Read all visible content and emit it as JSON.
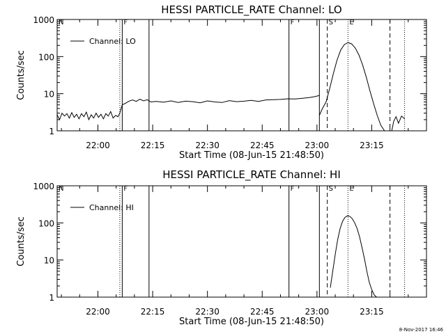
{
  "footer": {
    "timestamp": "8-Nov-2017 16:46"
  },
  "chart_data": [
    {
      "type": "line",
      "title": "HESSI PARTICLE_RATE Channel: LO",
      "xlabel": "Start Time (08-Jun-15 21:48:50)",
      "ylabel": "Counts/sec",
      "yscale": "log",
      "ylim": [
        1,
        1000
      ],
      "xlim": [
        "21:48:50",
        "23:30:00"
      ],
      "x_ticks": [
        "22:00",
        "22:15",
        "22:30",
        "22:45",
        "23:00",
        "23:15"
      ],
      "y_ticks": [
        "1",
        "10",
        "100",
        "1000"
      ],
      "legend": {
        "label": "Channel: LO",
        "placement": "top-left"
      },
      "markers": [
        {
          "time": "21:48:50",
          "label": "N",
          "style": "solid"
        },
        {
          "time": "22:06:00",
          "label": "",
          "style": "dotted"
        },
        {
          "time": "22:06:40",
          "label": "F",
          "style": "solid"
        },
        {
          "time": "22:14:00",
          "label": "",
          "style": "solid"
        },
        {
          "time": "22:52:20",
          "label": "F",
          "style": "solid"
        },
        {
          "time": "23:00:40",
          "label": "",
          "style": "solid"
        },
        {
          "time": "23:02:50",
          "label": "S",
          "style": "dashed"
        },
        {
          "time": "23:08:30",
          "label": "E",
          "style": "dotted"
        },
        {
          "time": "23:20:00",
          "label": "",
          "style": "dashed"
        },
        {
          "time": "23:24:00",
          "label": "",
          "style": "dotted"
        }
      ],
      "series": [
        {
          "name": "Channel: LO",
          "segments": [
            {
              "x": [
                "21:48:50",
                "21:49:30",
                "21:50:10",
                "21:50:50",
                "21:51:30",
                "21:52:10",
                "21:52:50",
                "21:53:30",
                "21:54:10",
                "21:54:50",
                "21:55:30",
                "21:56:10",
                "21:56:50",
                "21:57:30",
                "21:58:10",
                "21:58:50",
                "21:59:30",
                "22:00:10",
                "22:00:50",
                "22:01:30",
                "22:02:10",
                "22:02:50",
                "22:03:30",
                "22:04:10",
                "22:04:50",
                "22:05:30",
                "22:06:00"
              ],
              "y": [
                2.7,
                2.0,
                3.0,
                2.5,
                2.9,
                2.2,
                3.1,
                2.3,
                2.8,
                2.1,
                2.9,
                2.4,
                3.2,
                2.0,
                2.7,
                2.2,
                3.0,
                2.3,
                2.8,
                2.1,
                2.9,
                2.5,
                3.3,
                2.2,
                2.6,
                2.4,
                3.0
              ]
            },
            {
              "x": [
                "22:06:00",
                "22:06:40",
                "22:07:30",
                "22:08:30",
                "22:09:30",
                "22:10:30",
                "22:11:30",
                "22:12:30",
                "22:13:30",
                "22:14:30",
                "22:16:00",
                "22:18:00",
                "22:20:00",
                "22:22:00",
                "22:24:00",
                "22:26:00",
                "22:28:00",
                "22:30:00",
                "22:32:00",
                "22:34:00",
                "22:36:00",
                "22:38:00",
                "22:40:00",
                "22:42:00",
                "22:44:00",
                "22:46:00",
                "22:48:00",
                "22:50:00",
                "22:52:00",
                "22:54:00",
                "22:56:00",
                "22:58:00",
                "22:59:30",
                "23:00:20",
                "23:00:40"
              ],
              "y": [
                3.0,
                5.0,
                5.5,
                6.3,
                6.8,
                6.2,
                7.1,
                6.4,
                6.9,
                6.0,
                6.2,
                5.9,
                6.4,
                5.8,
                6.3,
                6.1,
                5.7,
                6.4,
                6.0,
                5.8,
                6.5,
                6.1,
                6.3,
                6.6,
                6.2,
                6.8,
                6.9,
                7.0,
                7.3,
                7.2,
                7.5,
                7.9,
                8.4,
                8.8,
                9.0
              ]
            },
            {
              "x": [
                "23:00:40",
                "23:01:30",
                "23:02:30",
                "23:03:30",
                "23:04:30",
                "23:05:30",
                "23:06:30",
                "23:07:30",
                "23:08:30",
                "23:09:30",
                "23:10:30",
                "23:11:30",
                "23:12:30",
                "23:13:30",
                "23:14:30",
                "23:15:30",
                "23:16:30",
                "23:17:30",
                "23:18:30"
              ],
              "y": [
                2.6,
                4.0,
                6.0,
                14,
                35,
                80,
                150,
                210,
                240,
                220,
                170,
                110,
                60,
                28,
                12,
                5.5,
                2.6,
                1.4,
                1.0
              ]
            },
            {
              "x": [
                "23:20:30",
                "23:21:00",
                "23:21:40",
                "23:22:20",
                "23:23:10",
                "23:24:00"
              ],
              "y": [
                1.0,
                1.8,
                2.4,
                1.6,
                2.5,
                2.1
              ]
            }
          ]
        }
      ]
    },
    {
      "type": "line",
      "title": "HESSI PARTICLE_RATE Channel: HI",
      "xlabel": "Start Time (08-Jun-15 21:48:50)",
      "ylabel": "Counts/sec",
      "yscale": "log",
      "ylim": [
        1,
        1000
      ],
      "xlim": [
        "21:48:50",
        "23:30:00"
      ],
      "x_ticks": [
        "22:00",
        "22:15",
        "22:30",
        "22:45",
        "23:00",
        "23:15"
      ],
      "y_ticks": [
        "1",
        "10",
        "100",
        "1000"
      ],
      "legend": {
        "label": "Channel: HI",
        "placement": "top-left"
      },
      "markers": [
        {
          "time": "21:48:50",
          "label": "N",
          "style": "solid"
        },
        {
          "time": "22:06:00",
          "label": "",
          "style": "dotted"
        },
        {
          "time": "22:06:40",
          "label": "F",
          "style": "solid"
        },
        {
          "time": "22:14:00",
          "label": "",
          "style": "solid"
        },
        {
          "time": "22:52:20",
          "label": "F",
          "style": "solid"
        },
        {
          "time": "23:00:40",
          "label": "",
          "style": "solid"
        },
        {
          "time": "23:02:50",
          "label": "S",
          "style": "dashed"
        },
        {
          "time": "23:08:30",
          "label": "E",
          "style": "dotted"
        },
        {
          "time": "23:20:00",
          "label": "",
          "style": "dashed"
        },
        {
          "time": "23:24:00",
          "label": "",
          "style": "dotted"
        }
      ],
      "series": [
        {
          "name": "Channel: HI",
          "segments": [
            {
              "x": [
                "23:03:40",
                "23:04:20",
                "23:05:00",
                "23:05:40",
                "23:06:20",
                "23:07:00",
                "23:07:40",
                "23:08:20",
                "23:09:00",
                "23:09:40",
                "23:10:20",
                "23:11:00",
                "23:11:40",
                "23:12:20",
                "23:13:00",
                "23:13:40",
                "23:14:20",
                "23:15:00",
                "23:15:40",
                "23:16:20"
              ],
              "y": [
                1.8,
                5.0,
                14,
                35,
                70,
                110,
                140,
                155,
                150,
                130,
                100,
                70,
                42,
                22,
                11,
                5.0,
                2.5,
                1.6,
                1.15,
                1.0
              ]
            }
          ]
        }
      ]
    }
  ]
}
